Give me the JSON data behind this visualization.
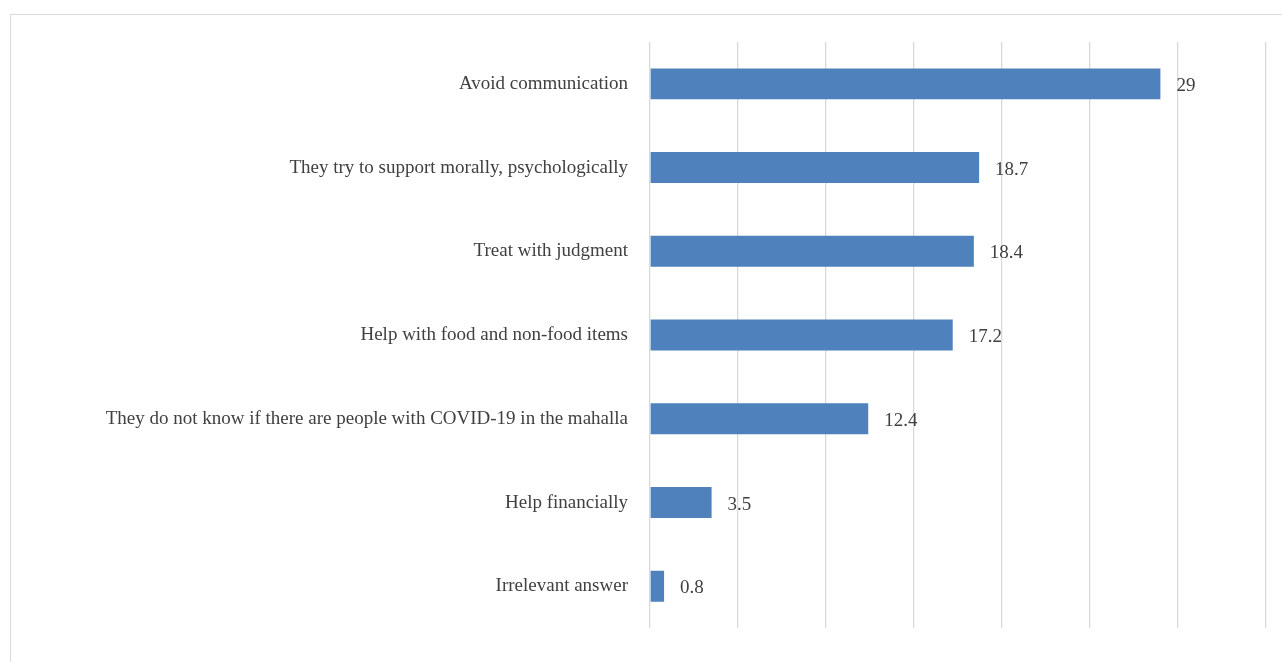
{
  "chart_data": {
    "type": "bar",
    "orientation": "horizontal",
    "categories": [
      "Avoid communication",
      "They try to support morally, psychologically",
      "Treat with judgment",
      "Help with food and non-food items",
      "They do not know if there are people with COVID-19 in the mahalla",
      "Help financially",
      "Irrelevant answer"
    ],
    "values": [
      29,
      18.7,
      18.4,
      17.2,
      12.4,
      3.5,
      0.8
    ],
    "color": "#4f81bd",
    "xlim": [
      0,
      35
    ],
    "xticks": [
      {
        "value": 0,
        "label": null
      },
      {
        "value": 5,
        "label": null
      },
      {
        "value": 10,
        "label": null
      },
      {
        "value": 15,
        "label": null
      },
      {
        "value": 20,
        "label": null
      },
      {
        "value": 25,
        "label": null
      },
      {
        "value": 30,
        "label": null
      },
      {
        "value": 35,
        "label": null
      }
    ],
    "grid": "x",
    "tick_labels": "y",
    "data_labels": true,
    "legend": false
  }
}
